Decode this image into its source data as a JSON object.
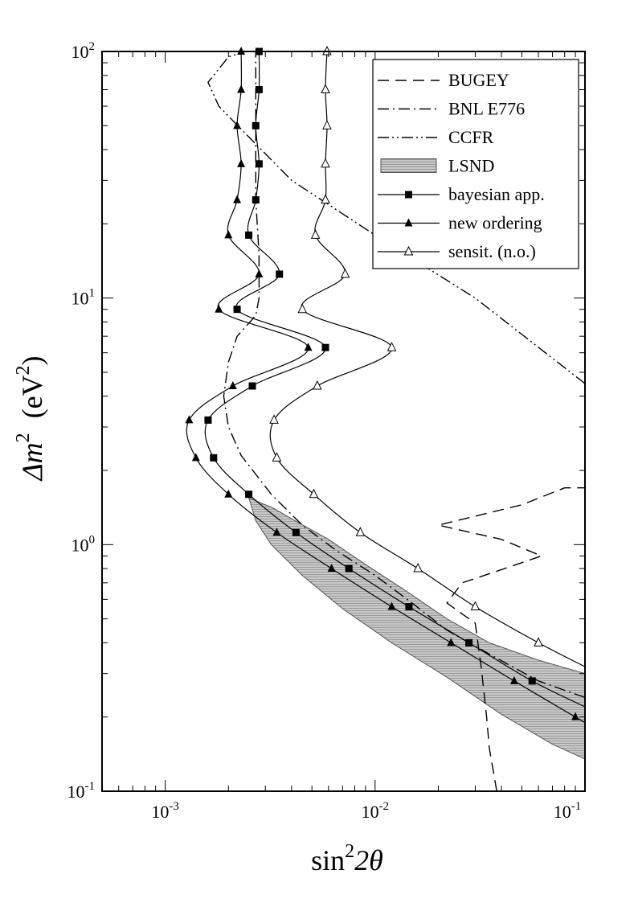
{
  "chart_data": {
    "type": "line",
    "title": "",
    "xlabel": {
      "base": "sin",
      "sup": "2",
      "rest": "2θ"
    },
    "ylabel": {
      "prefix": "Δm",
      "sup": "2",
      "open": "  (eV",
      "sup2": "2",
      "close": ")"
    },
    "x_scale": "log",
    "y_scale": "log",
    "xlim": [
      0.0005,
      0.1
    ],
    "ylim": [
      0.1,
      100
    ],
    "x_ticks": [
      {
        "value": 0.001,
        "base": "10",
        "exp": "-3"
      },
      {
        "value": 0.01,
        "base": "10",
        "exp": "-2"
      },
      {
        "value": 0.1,
        "base": "10",
        "exp": "-1"
      }
    ],
    "y_ticks": [
      {
        "value": 0.1,
        "base": "10",
        "exp": "-1"
      },
      {
        "value": 1,
        "base": "10",
        "exp": "0"
      },
      {
        "value": 10,
        "base": "10",
        "exp": "1"
      },
      {
        "value": 100,
        "base": "10",
        "exp": "2"
      }
    ],
    "grid": false,
    "legend_position": "top-right",
    "legend": [
      {
        "label": "BUGEY",
        "style": "dashed",
        "marker": "none"
      },
      {
        "label": "BNL E776",
        "style": "dash-dot",
        "marker": "none"
      },
      {
        "label": "CCFR",
        "style": "dash-dot-dot",
        "marker": "none"
      },
      {
        "label": "LSND",
        "style": "filled-region",
        "marker": "none"
      },
      {
        "label": "bayesian app.",
        "style": "solid",
        "marker": "filled-square"
      },
      {
        "label": "new ordering",
        "style": "solid",
        "marker": "filled-triangle"
      },
      {
        "label": "sensit. (n.o.)",
        "style": "solid",
        "marker": "open-triangle"
      }
    ],
    "lsnd_region": [
      [
        0.0025,
        1.55
      ],
      [
        0.0033,
        1.4
      ],
      [
        0.0043,
        1.23
      ],
      [
        0.006,
        1.05
      ],
      [
        0.009,
        0.83
      ],
      [
        0.014,
        0.65
      ],
      [
        0.022,
        0.5
      ],
      [
        0.035,
        0.4
      ],
      [
        0.06,
        0.34
      ],
      [
        0.1,
        0.3
      ],
      [
        0.1,
        0.135
      ],
      [
        0.07,
        0.155
      ],
      [
        0.04,
        0.205
      ],
      [
        0.022,
        0.29
      ],
      [
        0.012,
        0.4
      ],
      [
        0.007,
        0.55
      ],
      [
        0.0045,
        0.75
      ],
      [
        0.0032,
        1.0
      ],
      [
        0.0027,
        1.25
      ],
      [
        0.0025,
        1.55
      ]
    ],
    "series": [
      {
        "name": "BUGEY",
        "style": "dashed",
        "points": [
          [
            0.038,
            0.1
          ],
          [
            0.035,
            0.15
          ],
          [
            0.034,
            0.2
          ],
          [
            0.032,
            0.32
          ],
          [
            0.03,
            0.48
          ],
          [
            0.022,
            0.58
          ],
          [
            0.026,
            0.7
          ],
          [
            0.038,
            0.78
          ],
          [
            0.062,
            0.9
          ],
          [
            0.04,
            1.05
          ],
          [
            0.02,
            1.2
          ],
          [
            0.05,
            1.45
          ],
          [
            0.08,
            1.7
          ],
          [
            0.1,
            1.7
          ]
        ]
      },
      {
        "name": "BNL E776",
        "style": "dash-dot",
        "points": [
          [
            0.1,
            0.24
          ],
          [
            0.06,
            0.28
          ],
          [
            0.035,
            0.36
          ],
          [
            0.022,
            0.45
          ],
          [
            0.015,
            0.58
          ],
          [
            0.01,
            0.75
          ],
          [
            0.0065,
            0.95
          ],
          [
            0.0045,
            1.2
          ],
          [
            0.0032,
            1.6
          ],
          [
            0.0023,
            2.3
          ],
          [
            0.002,
            3.0
          ],
          [
            0.0019,
            4.0
          ],
          [
            0.002,
            5.5
          ],
          [
            0.0022,
            7.0
          ],
          [
            0.0027,
            8.5
          ],
          [
            0.0028,
            10
          ],
          [
            0.0028,
            15
          ],
          [
            0.0027,
            25
          ],
          [
            0.0027,
            40
          ],
          [
            0.0027,
            100
          ]
        ]
      },
      {
        "name": "CCFR",
        "style": "dash-dot-dot",
        "points": [
          [
            0.1,
            4.5
          ],
          [
            0.03,
            10
          ],
          [
            0.01,
            18
          ],
          [
            0.004,
            30
          ],
          [
            0.0025,
            45
          ],
          [
            0.0018,
            60
          ],
          [
            0.0016,
            75
          ],
          [
            0.002,
            95
          ],
          [
            0.0024,
            100
          ]
        ]
      },
      {
        "name": "sensit. (n.o.)",
        "marker": "open-triangle",
        "points": [
          [
            0.0059,
            100
          ],
          [
            0.0058,
            70
          ],
          [
            0.0059,
            50
          ],
          [
            0.0058,
            35
          ],
          [
            0.0058,
            25
          ],
          [
            0.0052,
            18
          ],
          [
            0.0072,
            12.5
          ],
          [
            0.0045,
            9
          ],
          [
            0.012,
            6.3
          ],
          [
            0.0053,
            4.4
          ],
          [
            0.0033,
            3.2
          ],
          [
            0.0034,
            2.25
          ],
          [
            0.0051,
            1.6
          ],
          [
            0.0085,
            1.12
          ],
          [
            0.016,
            0.8
          ],
          [
            0.03,
            0.56
          ],
          [
            0.06,
            0.4
          ],
          [
            0.1,
            0.32
          ]
        ]
      },
      {
        "name": "bayesian app.",
        "marker": "filled-square",
        "points": [
          [
            0.0028,
            100
          ],
          [
            0.0028,
            70
          ],
          [
            0.0027,
            50
          ],
          [
            0.0028,
            35
          ],
          [
            0.0027,
            25
          ],
          [
            0.0025,
            18
          ],
          [
            0.0035,
            12.5
          ],
          [
            0.0022,
            9
          ],
          [
            0.0058,
            6.3
          ],
          [
            0.0026,
            4.4
          ],
          [
            0.0016,
            3.2
          ],
          [
            0.0017,
            2.25
          ],
          [
            0.0025,
            1.6
          ],
          [
            0.0042,
            1.12
          ],
          [
            0.0075,
            0.8
          ],
          [
            0.0145,
            0.56
          ],
          [
            0.028,
            0.4
          ],
          [
            0.056,
            0.28
          ],
          [
            0.1,
            0.22
          ]
        ]
      },
      {
        "name": "new ordering",
        "marker": "filled-triangle",
        "points": [
          [
            0.0023,
            100
          ],
          [
            0.0023,
            70
          ],
          [
            0.0022,
            50
          ],
          [
            0.0023,
            35
          ],
          [
            0.0022,
            25
          ],
          [
            0.002,
            18
          ],
          [
            0.0028,
            12.5
          ],
          [
            0.0018,
            9
          ],
          [
            0.0048,
            6.3
          ],
          [
            0.0021,
            4.4
          ],
          [
            0.0013,
            3.2
          ],
          [
            0.0014,
            2.25
          ],
          [
            0.002,
            1.6
          ],
          [
            0.0034,
            1.12
          ],
          [
            0.0062,
            0.8
          ],
          [
            0.012,
            0.56
          ],
          [
            0.023,
            0.4
          ],
          [
            0.046,
            0.28
          ],
          [
            0.09,
            0.2
          ],
          [
            0.1,
            0.19
          ]
        ]
      }
    ]
  }
}
